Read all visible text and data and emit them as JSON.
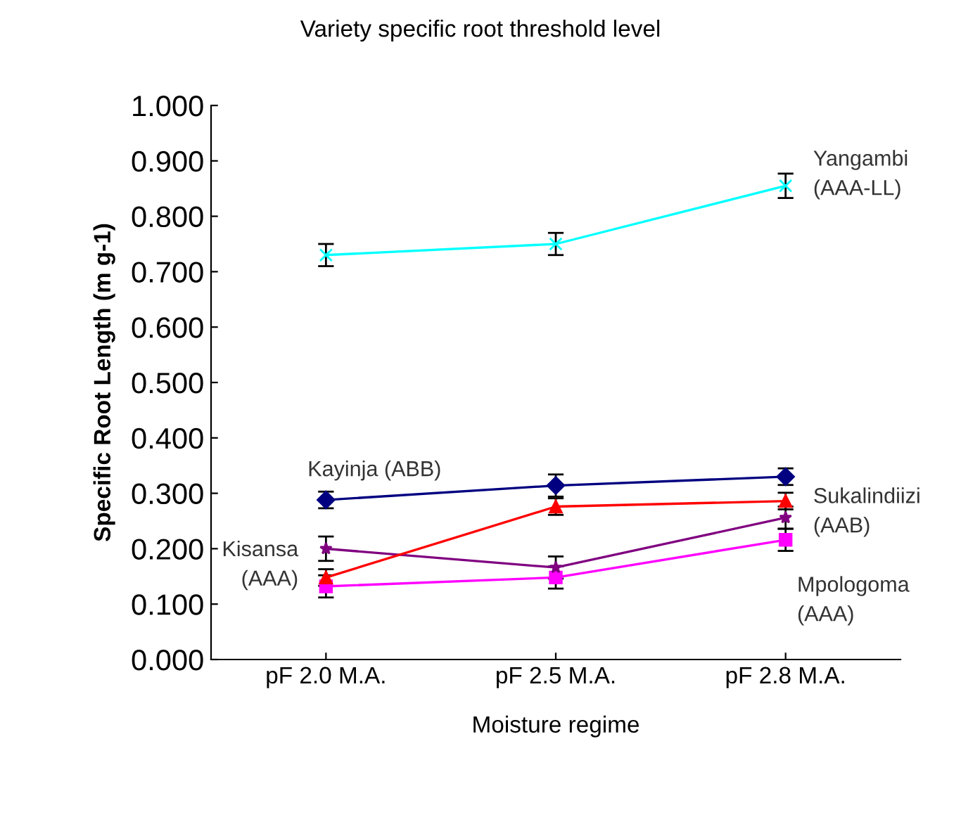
{
  "chart_data": {
    "type": "line",
    "title": "Variety specific root threshold level",
    "xlabel": "Moisture regime",
    "ylabel": "Specific Root Length (m g-1)",
    "categories": [
      "pF 2.0 M.A.",
      "pF 2.5 M.A.",
      "pF 2.8 M.A."
    ],
    "ylim": [
      0,
      1
    ],
    "yticks": [
      {
        "value": 0,
        "label": "0.000"
      },
      {
        "value": 0.1,
        "label": "0.100"
      },
      {
        "value": 0.2,
        "label": "0.200"
      },
      {
        "value": 0.3,
        "label": "0.300"
      },
      {
        "value": 0.4,
        "label": "0.400"
      },
      {
        "value": 0.5,
        "label": "0.500"
      },
      {
        "value": 0.6,
        "label": "0.600"
      },
      {
        "value": 0.7,
        "label": "0.700"
      },
      {
        "value": 0.8,
        "label": "0.800"
      },
      {
        "value": 0.9,
        "label": "0.900"
      },
      {
        "value": 1,
        "label": "1.000"
      }
    ],
    "grid": false,
    "legend": false,
    "series": [
      {
        "name": "Yangambi\n(AAA-LL)",
        "color": "#00ffff",
        "marker": "cross",
        "values": [
          0.73,
          0.75,
          0.855
        ],
        "errors": [
          0.02,
          0.02,
          0.022
        ]
      },
      {
        "name": "Kayinja (ABB)",
        "color": "#000080",
        "marker": "diamond",
        "values": [
          0.288,
          0.314,
          0.33
        ],
        "errors": [
          0.015,
          0.02,
          0.015
        ]
      },
      {
        "name": "Sukalindiizi\n(AAB)",
        "color": "#ff0000",
        "marker": "triangle",
        "values": [
          0.148,
          0.276,
          0.286
        ],
        "errors": [
          0.015,
          0.015,
          0.015
        ]
      },
      {
        "name": "Kisansa\n(AAA)",
        "color": "#800080",
        "marker": "star",
        "values": [
          0.2,
          0.166,
          0.256
        ],
        "errors": [
          0.022,
          0.02,
          0.02
        ]
      },
      {
        "name": "Mpologoma\n(AAA)",
        "color": "#ff00ff",
        "marker": "square",
        "values": [
          0.132,
          0.148,
          0.216
        ],
        "errors": [
          0.02,
          0.02,
          0.02
        ]
      }
    ]
  }
}
